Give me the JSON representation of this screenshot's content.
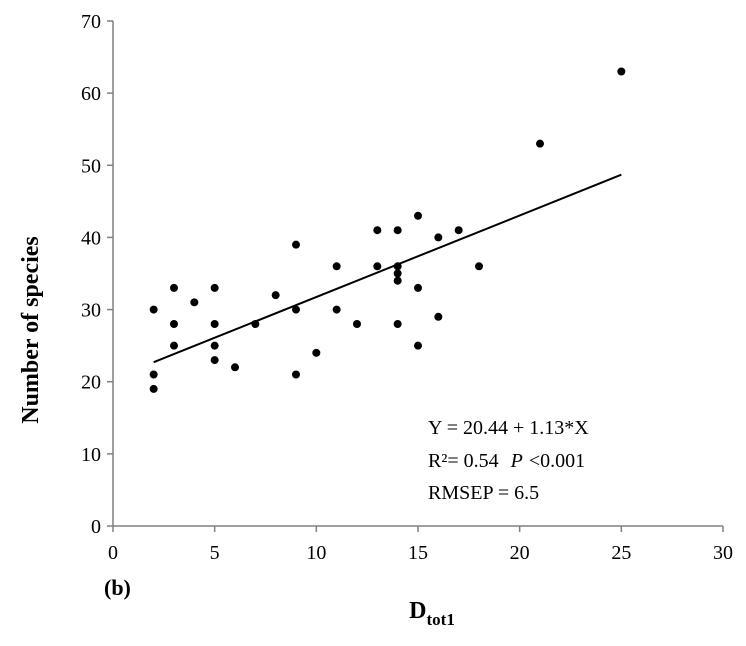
{
  "chart_data": {
    "type": "scatter",
    "xlabel": "D",
    "xlabel_subscript": "tot1",
    "ylabel": "Number of species",
    "xlim": [
      0,
      30
    ],
    "ylim": [
      0,
      70
    ],
    "xticks": [
      0,
      5,
      10,
      15,
      20,
      25,
      30
    ],
    "yticks": [
      0,
      10,
      20,
      30,
      40,
      50,
      60,
      70
    ],
    "grid": false,
    "legend": "none",
    "panel_label": "(b)",
    "points": [
      {
        "x": 2,
        "y": 30
      },
      {
        "x": 2,
        "y": 21
      },
      {
        "x": 2,
        "y": 19
      },
      {
        "x": 3,
        "y": 33
      },
      {
        "x": 3,
        "y": 28
      },
      {
        "x": 3,
        "y": 25
      },
      {
        "x": 4,
        "y": 31
      },
      {
        "x": 5,
        "y": 33
      },
      {
        "x": 5,
        "y": 28
      },
      {
        "x": 5,
        "y": 25
      },
      {
        "x": 5,
        "y": 23
      },
      {
        "x": 6,
        "y": 22
      },
      {
        "x": 7,
        "y": 28
      },
      {
        "x": 8,
        "y": 32
      },
      {
        "x": 9,
        "y": 39
      },
      {
        "x": 9,
        "y": 30
      },
      {
        "x": 9,
        "y": 21
      },
      {
        "x": 10,
        "y": 24
      },
      {
        "x": 11,
        "y": 36
      },
      {
        "x": 11,
        "y": 30
      },
      {
        "x": 12,
        "y": 28
      },
      {
        "x": 13,
        "y": 41
      },
      {
        "x": 13,
        "y": 36
      },
      {
        "x": 14,
        "y": 41
      },
      {
        "x": 14,
        "y": 36
      },
      {
        "x": 14,
        "y": 35
      },
      {
        "x": 14,
        "y": 34
      },
      {
        "x": 14,
        "y": 28
      },
      {
        "x": 15,
        "y": 43
      },
      {
        "x": 15,
        "y": 33
      },
      {
        "x": 15,
        "y": 25
      },
      {
        "x": 16,
        "y": 40
      },
      {
        "x": 16,
        "y": 29
      },
      {
        "x": 17,
        "y": 41
      },
      {
        "x": 18,
        "y": 36
      },
      {
        "x": 21,
        "y": 53
      },
      {
        "x": 25,
        "y": 63
      }
    ],
    "trendline": {
      "intercept": 20.44,
      "slope": 1.13,
      "x_range": [
        2,
        25
      ]
    },
    "annotations": [
      {
        "id": "equation",
        "text": "Y = 20.44 + 1.13*X"
      },
      {
        "id": "r2",
        "r2_text": "R²= 0.54",
        "p_symbol": "P",
        "p_value": "<0.001"
      },
      {
        "id": "rmsep",
        "text": "RMSEP = 6.5"
      }
    ],
    "colors": {
      "points": "#000000",
      "line": "#000000",
      "axis": "#808080"
    }
  }
}
